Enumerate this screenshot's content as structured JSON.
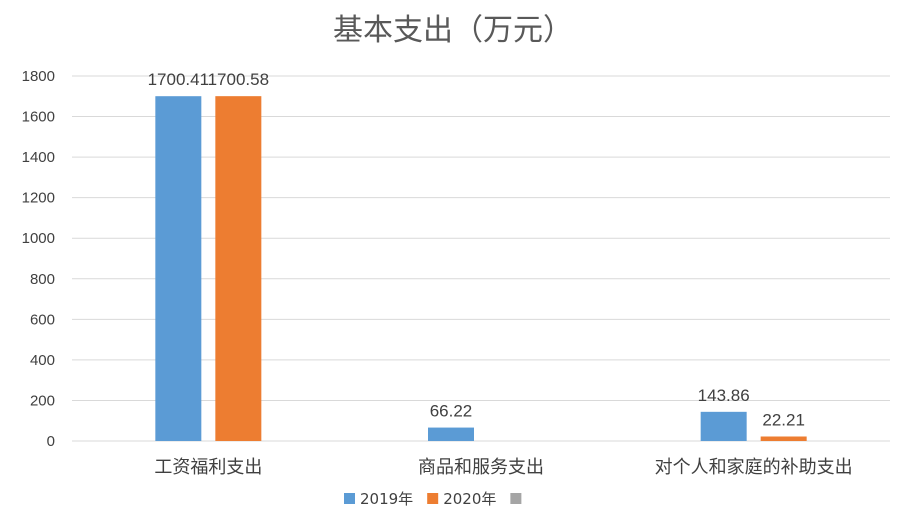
{
  "chart_data": {
    "type": "bar",
    "title": "基本支出（万元）",
    "categories": [
      "工资福利支出",
      "商品和服务支出",
      "对个人和家庭的补助支出"
    ],
    "series": [
      {
        "name": "2019年",
        "color": "#5b9bd5",
        "values": [
          1700.41,
          66.22,
          143.86
        ]
      },
      {
        "name": "2020年",
        "color": "#ed7d31",
        "values": [
          1700.58,
          null,
          22.21
        ]
      },
      {
        "name": "",
        "color": "#a5a5a5",
        "values": [
          null,
          null,
          null
        ]
      }
    ],
    "data_labels": [
      [
        "1700.41",
        "66.22",
        "143.86"
      ],
      [
        "1700.58",
        null,
        "22.21"
      ],
      [
        null,
        null,
        null
      ]
    ],
    "ylim": [
      0,
      1800
    ],
    "yticks": [
      0,
      200,
      400,
      600,
      800,
      1000,
      1200,
      1400,
      1600,
      1800
    ],
    "grid": true,
    "legend_position": "bottom"
  }
}
